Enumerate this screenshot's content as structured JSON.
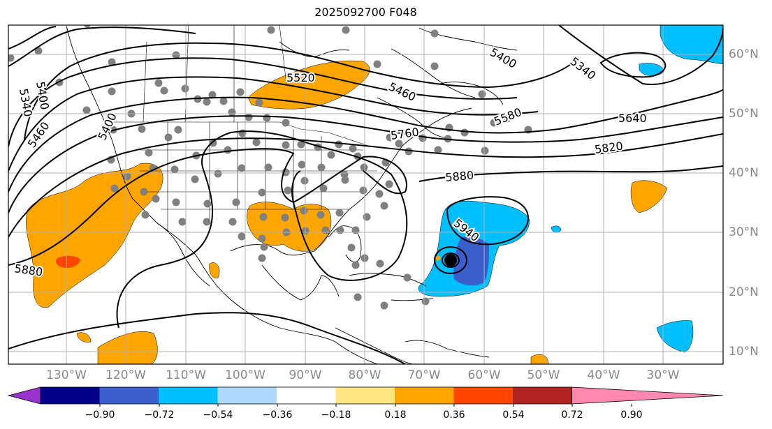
{
  "title": "2025092700 F048",
  "lat_labels": [
    "60°N",
    "50°N",
    "40°N",
    "30°N",
    "20°N",
    "10°N"
  ],
  "lon_labels": [
    "130°W",
    "120°W",
    "110°W",
    "100°W",
    "90°W",
    "80°W",
    "70°W",
    "60°W",
    "50°W",
    "40°W",
    "30°W"
  ],
  "contour_labels": [
    "5340",
    "5400",
    "5460",
    "5400",
    "5520",
    "5460",
    "5580",
    "5400",
    "5340",
    "5640",
    "5760",
    "5820",
    "5880",
    "5940",
    "5880"
  ],
  "colorbar": {
    "ticks": [
      "−0.90",
      "−0.72",
      "−0.54",
      "−0.36",
      "−0.18",
      "0.18",
      "0.36",
      "0.54",
      "0.72",
      "0.90"
    ],
    "colors": [
      "#9932cc",
      "#00008b",
      "#3a5fcd",
      "#00bfff",
      "#add8ff",
      "#ffffff",
      "#ffe680",
      "#ffa500",
      "#ff4500",
      "#b22222",
      "#ff88b0"
    ]
  },
  "colors": {
    "positive_fill": "#ffa500",
    "strong_positive_fill": "#ff4500",
    "negative_fill": "#00bfff",
    "strong_negative_fill": "#3a5fcd",
    "station": "#808080",
    "grid": "#b0b0b0"
  }
}
